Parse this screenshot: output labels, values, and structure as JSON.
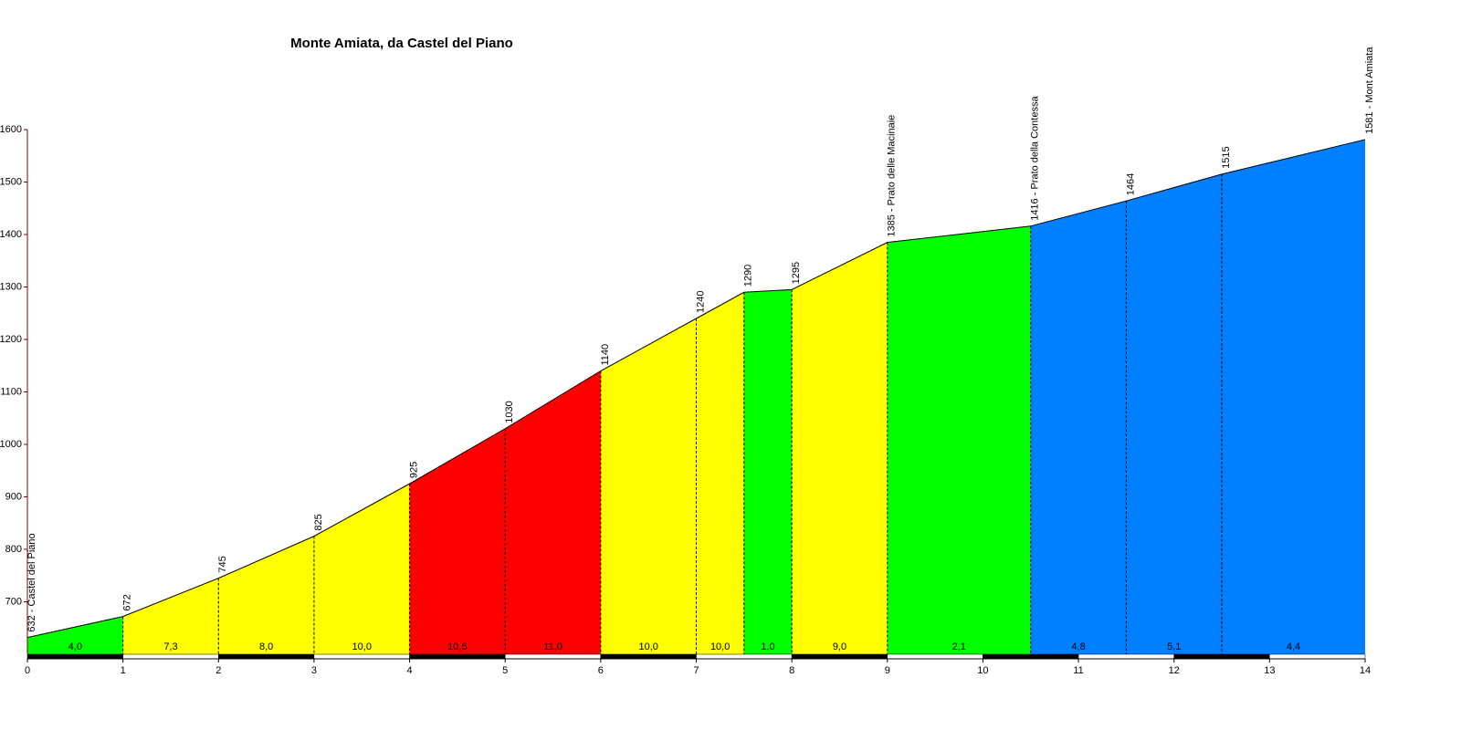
{
  "chart_data": {
    "type": "elevation-profile",
    "title": "Monte Amiata, da Castel del Piano",
    "x": [
      0,
      1,
      2,
      3,
      4,
      5,
      6,
      7,
      7.5,
      8,
      9,
      10.5,
      11.5,
      12.5,
      14
    ],
    "values": [
      632,
      672,
      745,
      825,
      925,
      1030,
      1140,
      1240,
      1290,
      1295,
      1385,
      1416,
      1464,
      1515,
      1581
    ],
    "value_labels": [
      "632 - Castel del Piano",
      "672",
      "745",
      "825",
      "925",
      "1030",
      "1140",
      "1240",
      "1290",
      "1295",
      "1385 - Prato delle Macinaie",
      "1416 - Prato della Contessa",
      "1464",
      "1515",
      "1581 - Mont Amiata"
    ],
    "gradients": [
      4.0,
      7.3,
      8.0,
      10.0,
      10.5,
      11.0,
      10.0,
      10.0,
      1.0,
      9.0,
      2.1,
      4.8,
      5.1,
      4.4
    ],
    "gradient_labels": [
      "4,0",
      "7,3",
      "8,0",
      "10,0",
      "10,5",
      "11,0",
      "10,0",
      "10,0",
      "1,0",
      "9,0",
      "2,1",
      "4,8",
      "5,1",
      "4,4"
    ],
    "segment_colors": [
      "#00ff00",
      "#ffff00",
      "#ffff00",
      "#ffff00",
      "#ff0000",
      "#ff0000",
      "#ffff00",
      "#ffff00",
      "#00ff00",
      "#ffff00",
      "#00ff00",
      "#0080ff",
      "#0080ff",
      "#0080ff"
    ],
    "xlim": [
      0,
      14
    ],
    "xticks": [
      0,
      1,
      2,
      3,
      4,
      5,
      6,
      7,
      8,
      9,
      10,
      11,
      12,
      13,
      14
    ],
    "ylim": [
      600,
      1600
    ],
    "yticks": [
      700,
      800,
      900,
      1000,
      1100,
      1200,
      1300,
      1400,
      1500,
      1600
    ]
  }
}
